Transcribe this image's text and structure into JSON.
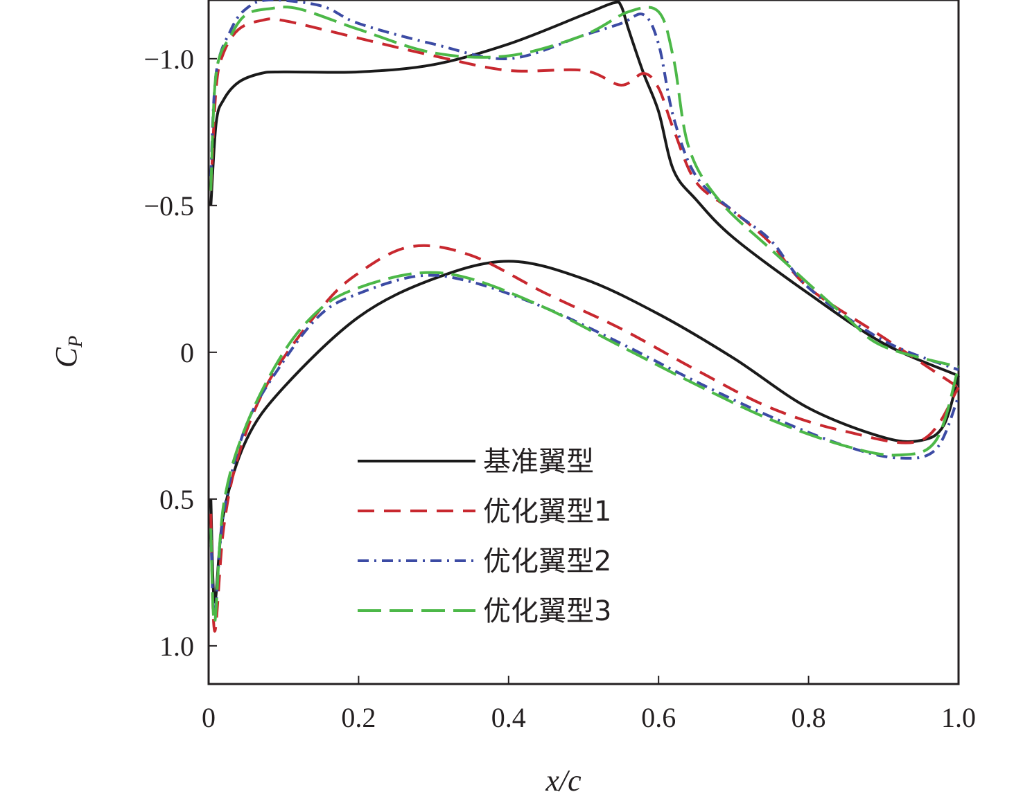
{
  "chart_data": {
    "type": "line",
    "title": "",
    "xlabel": "x/c",
    "ylabel_main": "C",
    "ylabel_sub": "P",
    "xlim": [
      0,
      1.0
    ],
    "ylim": [
      1.13,
      -1.2
    ],
    "y_axis_inverted": true,
    "grid": false,
    "legend_position": "lower-center",
    "x_ticks": [
      {
        "value": 0,
        "label": "0"
      },
      {
        "value": 0.2,
        "label": "0.2"
      },
      {
        "value": 0.4,
        "label": "0.4"
      },
      {
        "value": 0.6,
        "label": "0.6"
      },
      {
        "value": 0.8,
        "label": "0.8"
      },
      {
        "value": 1.0,
        "label": "1.0"
      }
    ],
    "y_ticks": [
      {
        "value": -1.0,
        "label": "−1.0"
      },
      {
        "value": -0.5,
        "label": "−0.5"
      },
      {
        "value": 0,
        "label": "0"
      },
      {
        "value": 0.5,
        "label": "0.5"
      },
      {
        "value": 1.0,
        "label": "1.0"
      }
    ],
    "series": [
      {
        "name": "基准翼型",
        "color": "#1a1a1a",
        "dash": "solid",
        "upper": [
          [
            0.003,
            -0.5
          ],
          [
            0.01,
            -0.78
          ],
          [
            0.02,
            -0.86
          ],
          [
            0.04,
            -0.92
          ],
          [
            0.07,
            -0.95
          ],
          [
            0.1,
            -0.955
          ],
          [
            0.2,
            -0.955
          ],
          [
            0.3,
            -0.98
          ],
          [
            0.4,
            -1.05
          ],
          [
            0.5,
            -1.15
          ],
          [
            0.54,
            -1.19
          ],
          [
            0.55,
            -1.18
          ],
          [
            0.56,
            -1.1
          ],
          [
            0.58,
            -0.95
          ],
          [
            0.6,
            -0.82
          ],
          [
            0.62,
            -0.62
          ],
          [
            0.65,
            -0.52
          ],
          [
            0.7,
            -0.39
          ],
          [
            0.8,
            -0.2
          ],
          [
            0.9,
            -0.03
          ],
          [
            1.0,
            0.08
          ]
        ],
        "lower": [
          [
            0.003,
            0.5
          ],
          [
            0.008,
            0.85
          ],
          [
            0.02,
            0.55
          ],
          [
            0.05,
            0.3
          ],
          [
            0.1,
            0.12
          ],
          [
            0.2,
            -0.12
          ],
          [
            0.3,
            -0.25
          ],
          [
            0.4,
            -0.31
          ],
          [
            0.5,
            -0.25
          ],
          [
            0.6,
            -0.13
          ],
          [
            0.7,
            0.02
          ],
          [
            0.8,
            0.19
          ],
          [
            0.9,
            0.29
          ],
          [
            0.95,
            0.3
          ],
          [
            0.98,
            0.25
          ],
          [
            1.0,
            0.08
          ]
        ]
      },
      {
        "name": "优化翼型1",
        "color": "#c8282f",
        "dash": "long-dash",
        "upper": [
          [
            0.003,
            -0.55
          ],
          [
            0.01,
            -0.9
          ],
          [
            0.02,
            -1.02
          ],
          [
            0.04,
            -1.1
          ],
          [
            0.07,
            -1.13
          ],
          [
            0.1,
            -1.13
          ],
          [
            0.2,
            -1.07
          ],
          [
            0.3,
            -1.01
          ],
          [
            0.4,
            -0.96
          ],
          [
            0.5,
            -0.96
          ],
          [
            0.55,
            -0.91
          ],
          [
            0.58,
            -0.95
          ],
          [
            0.6,
            -0.9
          ],
          [
            0.62,
            -0.76
          ],
          [
            0.65,
            -0.58
          ],
          [
            0.7,
            -0.48
          ],
          [
            0.75,
            -0.37
          ],
          [
            0.8,
            -0.22
          ],
          [
            0.9,
            -0.05
          ],
          [
            1.0,
            0.12
          ]
        ],
        "lower": [
          [
            0.003,
            0.55
          ],
          [
            0.008,
            0.95
          ],
          [
            0.02,
            0.6
          ],
          [
            0.04,
            0.35
          ],
          [
            0.08,
            0.1
          ],
          [
            0.15,
            -0.15
          ],
          [
            0.2,
            -0.27
          ],
          [
            0.27,
            -0.36
          ],
          [
            0.35,
            -0.33
          ],
          [
            0.45,
            -0.2
          ],
          [
            0.55,
            -0.08
          ],
          [
            0.65,
            0.06
          ],
          [
            0.75,
            0.19
          ],
          [
            0.85,
            0.27
          ],
          [
            0.95,
            0.3
          ],
          [
            1.0,
            0.12
          ]
        ]
      },
      {
        "name": "优化翼型2",
        "color": "#3c4ba4",
        "dash": "dash-dot",
        "upper": [
          [
            0.003,
            -0.6
          ],
          [
            0.01,
            -0.95
          ],
          [
            0.03,
            -1.1
          ],
          [
            0.05,
            -1.17
          ],
          [
            0.08,
            -1.2
          ],
          [
            0.15,
            -1.18
          ],
          [
            0.2,
            -1.12
          ],
          [
            0.3,
            -1.05
          ],
          [
            0.4,
            -1.0
          ],
          [
            0.5,
            -1.08
          ],
          [
            0.55,
            -1.12
          ],
          [
            0.58,
            -1.15
          ],
          [
            0.6,
            -1.05
          ],
          [
            0.62,
            -0.8
          ],
          [
            0.65,
            -0.6
          ],
          [
            0.7,
            -0.48
          ],
          [
            0.75,
            -0.38
          ],
          [
            0.8,
            -0.22
          ],
          [
            0.9,
            -0.04
          ],
          [
            1.0,
            0.06
          ]
        ],
        "lower": [
          [
            0.003,
            0.6
          ],
          [
            0.008,
            0.9
          ],
          [
            0.02,
            0.55
          ],
          [
            0.05,
            0.25
          ],
          [
            0.1,
            0.03
          ],
          [
            0.15,
            -0.13
          ],
          [
            0.2,
            -0.2
          ],
          [
            0.28,
            -0.26
          ],
          [
            0.35,
            -0.24
          ],
          [
            0.45,
            -0.15
          ],
          [
            0.55,
            -0.03
          ],
          [
            0.65,
            0.1
          ],
          [
            0.75,
            0.22
          ],
          [
            0.85,
            0.32
          ],
          [
            0.92,
            0.36
          ],
          [
            0.97,
            0.33
          ],
          [
            1.0,
            0.15
          ]
        ]
      },
      {
        "name": "优化翼型3",
        "color": "#4cb848",
        "dash": "long-dash-wide",
        "upper": [
          [
            0.003,
            -0.55
          ],
          [
            0.01,
            -0.95
          ],
          [
            0.03,
            -1.08
          ],
          [
            0.05,
            -1.15
          ],
          [
            0.08,
            -1.17
          ],
          [
            0.12,
            -1.17
          ],
          [
            0.2,
            -1.1
          ],
          [
            0.3,
            -1.02
          ],
          [
            0.4,
            -1.01
          ],
          [
            0.5,
            -1.08
          ],
          [
            0.56,
            -1.16
          ],
          [
            0.6,
            -1.16
          ],
          [
            0.62,
            -1.0
          ],
          [
            0.64,
            -0.7
          ],
          [
            0.68,
            -0.52
          ],
          [
            0.75,
            -0.35
          ],
          [
            0.85,
            -0.12
          ],
          [
            0.9,
            -0.02
          ],
          [
            1.0,
            0.05
          ]
        ],
        "lower": [
          [
            0.003,
            0.6
          ],
          [
            0.008,
            0.92
          ],
          [
            0.02,
            0.52
          ],
          [
            0.05,
            0.25
          ],
          [
            0.1,
            0.0
          ],
          [
            0.15,
            -0.15
          ],
          [
            0.2,
            -0.22
          ],
          [
            0.28,
            -0.27
          ],
          [
            0.35,
            -0.25
          ],
          [
            0.45,
            -0.15
          ],
          [
            0.55,
            -0.02
          ],
          [
            0.65,
            0.11
          ],
          [
            0.75,
            0.23
          ],
          [
            0.85,
            0.32
          ],
          [
            0.92,
            0.35
          ],
          [
            0.97,
            0.3
          ],
          [
            1.0,
            0.05
          ]
        ]
      }
    ]
  }
}
